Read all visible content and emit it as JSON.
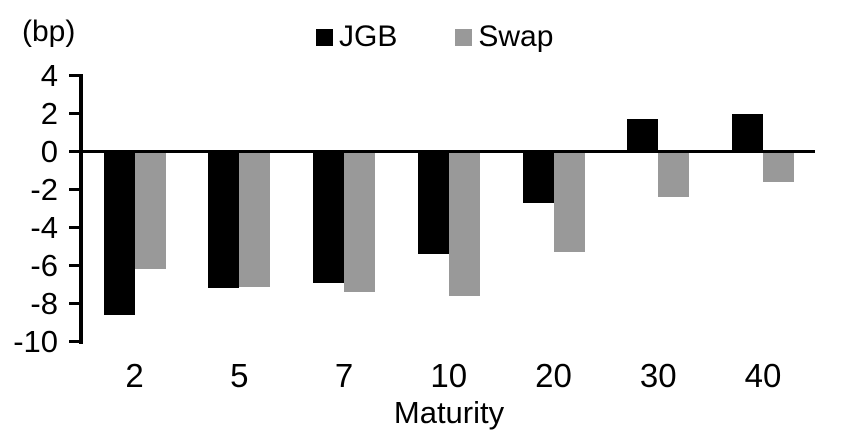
{
  "unit_label": "(bp)",
  "legend": [
    {
      "label": "JGB",
      "color": "#000000"
    },
    {
      "label": "Swap",
      "color": "#999999"
    }
  ],
  "chart_data": {
    "type": "bar",
    "title": "",
    "xlabel": "Maturity",
    "ylabel": "(bp)",
    "categories": [
      "2",
      "5",
      "7",
      "10",
      "20",
      "30",
      "40"
    ],
    "series": [
      {
        "name": "JGB",
        "color": "#000000",
        "values": [
          -8.6,
          -7.2,
          -6.9,
          -5.4,
          -2.7,
          1.7,
          2.0
        ]
      },
      {
        "name": "Swap",
        "color": "#999999",
        "values": [
          -6.2,
          -7.1,
          -7.4,
          -7.6,
          -5.3,
          -2.4,
          -1.6
        ]
      }
    ],
    "ylim": [
      -10,
      4
    ],
    "yticks": [
      4,
      2,
      0,
      -2,
      -4,
      -6,
      -8,
      -10
    ],
    "grid": false,
    "legend_position": "top-center",
    "zero_baseline": true
  }
}
